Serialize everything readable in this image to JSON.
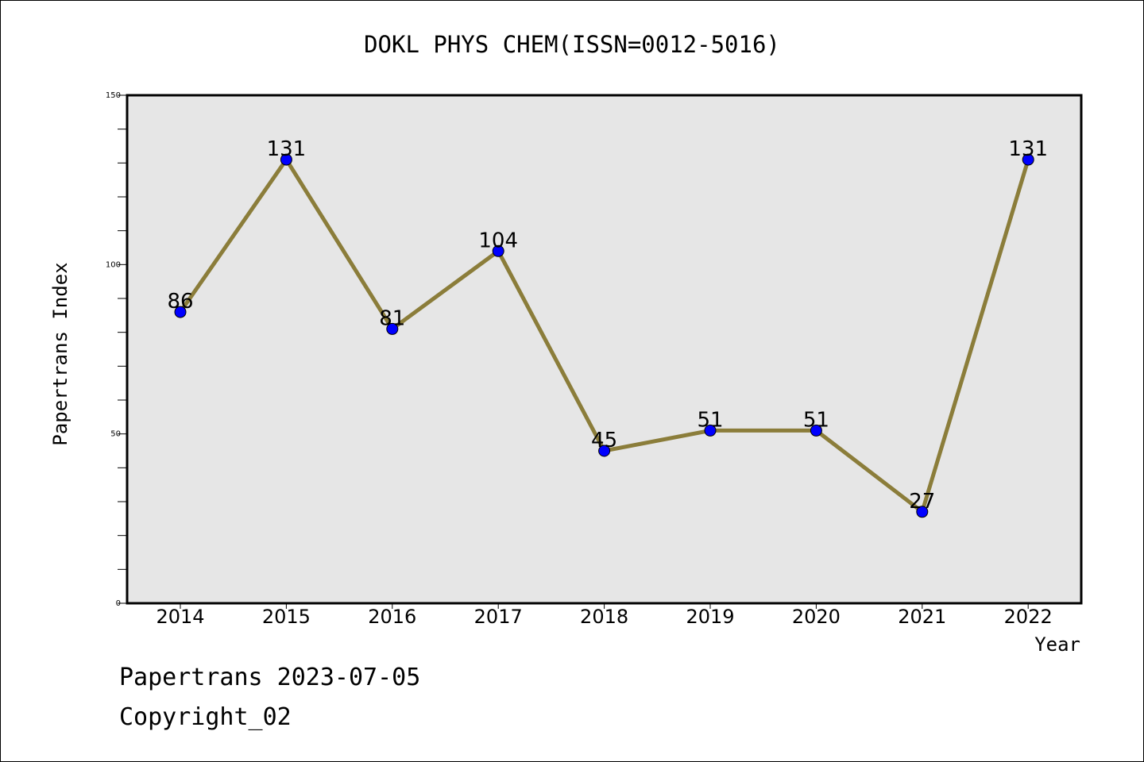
{
  "chart_data": {
    "type": "line",
    "title": "DOKL PHYS CHEM(ISSN=0012-5016)",
    "xlabel": "Year",
    "ylabel": "Papertrans Index",
    "categories": [
      "2014",
      "2015",
      "2016",
      "2017",
      "2018",
      "2019",
      "2020",
      "2021",
      "2022"
    ],
    "values": [
      86,
      131,
      81,
      104,
      45,
      51,
      51,
      27,
      131
    ],
    "data_labels": [
      "86",
      "131",
      "81",
      "104",
      "45",
      "51",
      "51",
      "27",
      "131"
    ],
    "ylim": [
      0,
      150
    ],
    "yticks": [
      "0",
      "50",
      "100",
      "150"
    ],
    "grid": false,
    "colors": {
      "line": "#8b7d3a",
      "marker": "#0000ff",
      "plot_background": "#e6e6e6"
    }
  },
  "footer": {
    "line1": "Papertrans 2023-07-05",
    "line2": "Copyright_02"
  }
}
